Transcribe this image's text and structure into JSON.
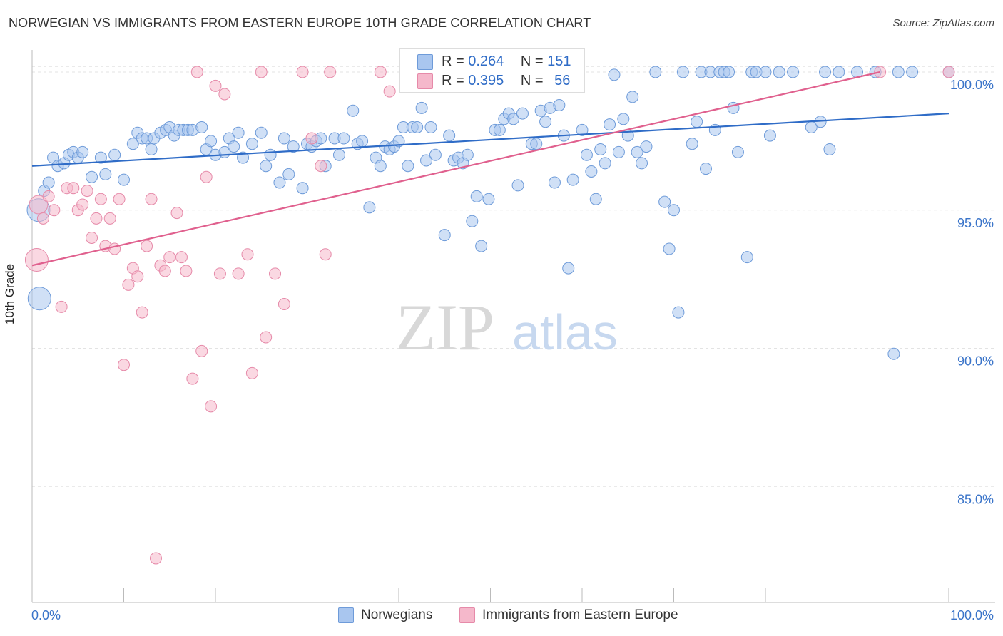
{
  "header": {
    "title": "NORWEGIAN VS IMMIGRANTS FROM EASTERN EUROPE 10TH GRADE CORRELATION CHART",
    "source": "Source: ZipAtlas.com"
  },
  "watermark": {
    "zip": "ZIP",
    "atlas": "atlas"
  },
  "legend": {
    "norwegians": {
      "r_label": "R =",
      "r_value": "0.264",
      "n_label": "N =",
      "n_value": "151"
    },
    "immigrants": {
      "r_label": "R =",
      "r_value": "0.395",
      "n_label": "N =",
      "n_value": "56"
    }
  },
  "bottom_legend": {
    "norwegians": "Norwegians",
    "immigrants": "Immigrants from Eastern Europe"
  },
  "colors": {
    "blue": "#2f6cc7",
    "pink": "#e0608e",
    "blue_fill": "#a9c6ef",
    "pink_fill": "#f5b8cb",
    "tick": "#3a74c9"
  },
  "chart_data": {
    "type": "scatter",
    "title": "NORWEGIAN VS IMMIGRANTS FROM EASTERN EUROPE 10TH GRADE CORRELATION CHART",
    "xlabel": "",
    "ylabel": "10th Grade",
    "xlim": [
      0,
      100
    ],
    "ylim": [
      80.8,
      100.8
    ],
    "x_tick_labels": [
      "0.0%",
      "100.0%"
    ],
    "y_ticks": [
      85,
      90,
      95,
      100
    ],
    "y_tick_labels": [
      "85.0%",
      "90.0%",
      "95.0%",
      "100.0%"
    ],
    "grid": true,
    "series": [
      {
        "name": "Norwegians",
        "color": "#2f6cc7",
        "trend": {
          "x": [
            0,
            100
          ],
          "y": [
            96.6,
            98.5
          ]
        },
        "points": [
          [
            0.7,
            95.0,
            3
          ],
          [
            0.8,
            91.8,
            3
          ],
          [
            1.3,
            95.7,
            1
          ],
          [
            1.8,
            96.0,
            1
          ],
          [
            2.3,
            96.9,
            1
          ],
          [
            2.8,
            96.6,
            1
          ],
          [
            3.5,
            96.7,
            1
          ],
          [
            4.0,
            97.0,
            1
          ],
          [
            4.5,
            97.1,
            1
          ],
          [
            5.0,
            96.9,
            1
          ],
          [
            5.5,
            97.1,
            1
          ],
          [
            6.5,
            96.2,
            1
          ],
          [
            7.5,
            96.9,
            1
          ],
          [
            8.0,
            96.3,
            1
          ],
          [
            9.0,
            97.0,
            1
          ],
          [
            10.0,
            96.1,
            1
          ],
          [
            11.0,
            97.4,
            1
          ],
          [
            11.5,
            97.8,
            1
          ],
          [
            12.0,
            97.6,
            1
          ],
          [
            12.5,
            97.6,
            1
          ],
          [
            13.0,
            97.2,
            1
          ],
          [
            13.3,
            97.6,
            1
          ],
          [
            14.0,
            97.8,
            1
          ],
          [
            14.6,
            97.9,
            1
          ],
          [
            15.0,
            98.0,
            1
          ],
          [
            15.5,
            97.7,
            1
          ],
          [
            16.0,
            97.9,
            1
          ],
          [
            16.5,
            97.9,
            1
          ],
          [
            17.0,
            97.9,
            1
          ],
          [
            17.5,
            97.9,
            1
          ],
          [
            18.5,
            98.0,
            1
          ],
          [
            19.0,
            97.2,
            1
          ],
          [
            19.5,
            97.5,
            1
          ],
          [
            20.0,
            97.0,
            1
          ],
          [
            21.0,
            97.1,
            1
          ],
          [
            21.5,
            97.6,
            1
          ],
          [
            22.0,
            97.3,
            1
          ],
          [
            22.5,
            97.8,
            1
          ],
          [
            23.0,
            96.9,
            1
          ],
          [
            24.0,
            97.4,
            1
          ],
          [
            25.0,
            97.8,
            1
          ],
          [
            25.5,
            96.6,
            1
          ],
          [
            26.0,
            97.0,
            1
          ],
          [
            27.0,
            96.0,
            1
          ],
          [
            27.5,
            97.6,
            1
          ],
          [
            28.0,
            96.3,
            1
          ],
          [
            28.5,
            97.3,
            1
          ],
          [
            29.5,
            95.8,
            1
          ],
          [
            30.0,
            97.4,
            1
          ],
          [
            30.5,
            97.3,
            1
          ],
          [
            31.0,
            97.5,
            1
          ],
          [
            31.5,
            97.6,
            1
          ],
          [
            32.0,
            96.6,
            1
          ],
          [
            33.0,
            97.6,
            1
          ],
          [
            33.5,
            97.0,
            1
          ],
          [
            34.0,
            97.6,
            1
          ],
          [
            35.0,
            98.6,
            1
          ],
          [
            35.5,
            97.4,
            1
          ],
          [
            36.0,
            97.5,
            1
          ],
          [
            36.8,
            95.1,
            1
          ],
          [
            37.5,
            96.9,
            1
          ],
          [
            38.0,
            96.6,
            1
          ],
          [
            38.5,
            97.3,
            1
          ],
          [
            39.0,
            97.2,
            1
          ],
          [
            39.5,
            97.3,
            1
          ],
          [
            40.0,
            97.5,
            1
          ],
          [
            40.5,
            98.0,
            1
          ],
          [
            41.0,
            96.6,
            1
          ],
          [
            41.5,
            98.0,
            1
          ],
          [
            42.0,
            98.0,
            1
          ],
          [
            42.5,
            98.7,
            1
          ],
          [
            43.0,
            96.8,
            1
          ],
          [
            43.5,
            98.0,
            1
          ],
          [
            44.0,
            97.0,
            1
          ],
          [
            45.0,
            94.1,
            1
          ],
          [
            45.5,
            97.7,
            1
          ],
          [
            46.0,
            96.8,
            1
          ],
          [
            46.5,
            96.9,
            1
          ],
          [
            47.0,
            96.7,
            1
          ],
          [
            47.5,
            97.0,
            1
          ],
          [
            48.0,
            94.6,
            1
          ],
          [
            48.5,
            95.5,
            1
          ],
          [
            49.0,
            93.7,
            1
          ],
          [
            49.8,
            95.4,
            1
          ],
          [
            50.5,
            97.9,
            1
          ],
          [
            51.0,
            97.9,
            1
          ],
          [
            51.5,
            98.3,
            1
          ],
          [
            52.0,
            98.5,
            1
          ],
          [
            52.5,
            98.3,
            1
          ],
          [
            53.0,
            95.9,
            1
          ],
          [
            53.5,
            98.5,
            1
          ],
          [
            54.5,
            97.4,
            1
          ],
          [
            55.0,
            97.4,
            1
          ],
          [
            55.5,
            98.6,
            1
          ],
          [
            56.0,
            98.2,
            1
          ],
          [
            56.5,
            98.7,
            1
          ],
          [
            57.0,
            96.0,
            1
          ],
          [
            57.5,
            98.8,
            1
          ],
          [
            58.0,
            97.7,
            1
          ],
          [
            58.5,
            92.9,
            1
          ],
          [
            59.0,
            96.1,
            1
          ],
          [
            60.0,
            97.9,
            1
          ],
          [
            60.5,
            97.0,
            1
          ],
          [
            61.0,
            96.4,
            1
          ],
          [
            61.5,
            95.4,
            1
          ],
          [
            62.0,
            97.2,
            1
          ],
          [
            62.5,
            96.7,
            1
          ],
          [
            63.0,
            98.1,
            1
          ],
          [
            63.5,
            99.9,
            1
          ],
          [
            64.0,
            97.1,
            1
          ],
          [
            64.5,
            98.3,
            1
          ],
          [
            65.0,
            97.7,
            1
          ],
          [
            65.5,
            99.1,
            1
          ],
          [
            66.0,
            97.1,
            1
          ],
          [
            66.5,
            96.7,
            1
          ],
          [
            67.0,
            97.3,
            1
          ],
          [
            68.0,
            100.0,
            1
          ],
          [
            69.0,
            95.3,
            1
          ],
          [
            69.5,
            93.6,
            1
          ],
          [
            70.0,
            95.0,
            1
          ],
          [
            70.5,
            91.3,
            1
          ],
          [
            71.0,
            100.0,
            1
          ],
          [
            72.0,
            97.4,
            1
          ],
          [
            72.5,
            98.2,
            1
          ],
          [
            73.0,
            100.0,
            1
          ],
          [
            73.5,
            96.5,
            1
          ],
          [
            74.0,
            100.0,
            1
          ],
          [
            74.5,
            97.9,
            1
          ],
          [
            75.0,
            100.0,
            1
          ],
          [
            75.5,
            100.0,
            1
          ],
          [
            76.0,
            100.0,
            1
          ],
          [
            76.5,
            98.7,
            1
          ],
          [
            77.0,
            97.1,
            1
          ],
          [
            78.0,
            93.3,
            1
          ],
          [
            78.5,
            100.0,
            1
          ],
          [
            79.0,
            100.0,
            1
          ],
          [
            80.0,
            100.0,
            1
          ],
          [
            80.5,
            97.7,
            1
          ],
          [
            81.5,
            100.0,
            1
          ],
          [
            83.0,
            100.0,
            1
          ],
          [
            85.0,
            98.0,
            1
          ],
          [
            86.0,
            98.2,
            1
          ],
          [
            86.5,
            100.0,
            1
          ],
          [
            87.0,
            97.2,
            1
          ],
          [
            88.0,
            100.0,
            1
          ],
          [
            90.0,
            100.0,
            1
          ],
          [
            92.0,
            100.0,
            1
          ],
          [
            94.0,
            89.8,
            1
          ],
          [
            94.5,
            100.0,
            1
          ],
          [
            96.0,
            100.0,
            1
          ],
          [
            100.0,
            100.0,
            1
          ]
        ]
      },
      {
        "name": "Immigrants from Eastern Europe",
        "color": "#e0608e",
        "trend": {
          "x": [
            0,
            92.5
          ],
          "y": [
            93.0,
            100.0
          ]
        },
        "points": [
          [
            0.5,
            93.2,
            3
          ],
          [
            0.7,
            95.2,
            2
          ],
          [
            1.2,
            94.7,
            1
          ],
          [
            1.8,
            95.5,
            1
          ],
          [
            2.4,
            95.0,
            1
          ],
          [
            3.2,
            91.5,
            1
          ],
          [
            3.8,
            95.8,
            1
          ],
          [
            4.5,
            95.8,
            1
          ],
          [
            5.0,
            95.0,
            1
          ],
          [
            5.5,
            95.2,
            1
          ],
          [
            6.0,
            95.7,
            1
          ],
          [
            6.5,
            94.0,
            1
          ],
          [
            7.0,
            94.7,
            1
          ],
          [
            7.5,
            95.4,
            1
          ],
          [
            8.0,
            93.7,
            1
          ],
          [
            8.5,
            94.7,
            1
          ],
          [
            9.0,
            93.6,
            1
          ],
          [
            9.5,
            95.4,
            1
          ],
          [
            10.0,
            89.4,
            1
          ],
          [
            10.5,
            92.3,
            1
          ],
          [
            11.0,
            92.9,
            1
          ],
          [
            11.5,
            92.6,
            1
          ],
          [
            12.0,
            91.3,
            1
          ],
          [
            12.5,
            93.7,
            1
          ],
          [
            13.0,
            95.4,
            1
          ],
          [
            13.5,
            82.4,
            1
          ],
          [
            14.0,
            93.0,
            1
          ],
          [
            14.5,
            92.8,
            1
          ],
          [
            15.0,
            93.3,
            1
          ],
          [
            15.8,
            94.9,
            1
          ],
          [
            16.3,
            93.3,
            1
          ],
          [
            16.8,
            92.8,
            1
          ],
          [
            17.5,
            88.9,
            1
          ],
          [
            18.0,
            100.0,
            1
          ],
          [
            18.5,
            89.9,
            1
          ],
          [
            19.0,
            96.2,
            1
          ],
          [
            19.5,
            87.9,
            1
          ],
          [
            20.0,
            99.5,
            1
          ],
          [
            20.5,
            92.7,
            1
          ],
          [
            21.0,
            99.2,
            1
          ],
          [
            22.5,
            92.7,
            1
          ],
          [
            23.5,
            93.4,
            1
          ],
          [
            24.0,
            89.1,
            1
          ],
          [
            25.0,
            100.0,
            1
          ],
          [
            25.5,
            90.4,
            1
          ],
          [
            26.5,
            92.7,
            1
          ],
          [
            27.5,
            91.6,
            1
          ],
          [
            29.5,
            100.0,
            1
          ],
          [
            30.5,
            97.6,
            1
          ],
          [
            31.5,
            96.6,
            1
          ],
          [
            32.0,
            93.4,
            1
          ],
          [
            32.5,
            100.0,
            1
          ],
          [
            38.0,
            100.0,
            1
          ],
          [
            39.0,
            99.3,
            1
          ],
          [
            92.5,
            100.0,
            1
          ],
          [
            100.0,
            100.0,
            1
          ]
        ]
      }
    ]
  }
}
